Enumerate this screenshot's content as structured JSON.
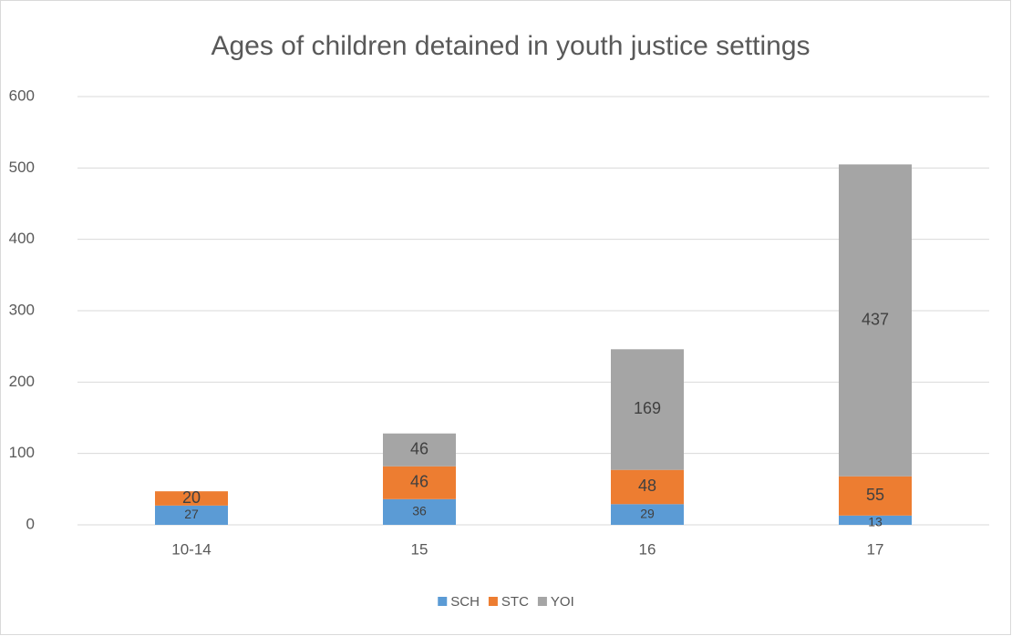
{
  "chart_data": {
    "type": "stacked_bar",
    "title": "Ages of children detained in youth justice settings",
    "categories": [
      "10-14",
      "15",
      "16",
      "17"
    ],
    "series": [
      {
        "name": "SCH",
        "color": "#5b9bd5",
        "values": [
          27,
          36,
          29,
          13
        ]
      },
      {
        "name": "STC",
        "color": "#ed7d31",
        "values": [
          20,
          46,
          48,
          55
        ]
      },
      {
        "name": "YOI",
        "color": "#a5a5a5",
        "values": [
          null,
          46,
          169,
          437
        ]
      }
    ],
    "ylim": [
      0,
      600
    ],
    "yticks": [
      0,
      100,
      200,
      300,
      400,
      500,
      600
    ],
    "grid": true,
    "legend": "bottom"
  }
}
